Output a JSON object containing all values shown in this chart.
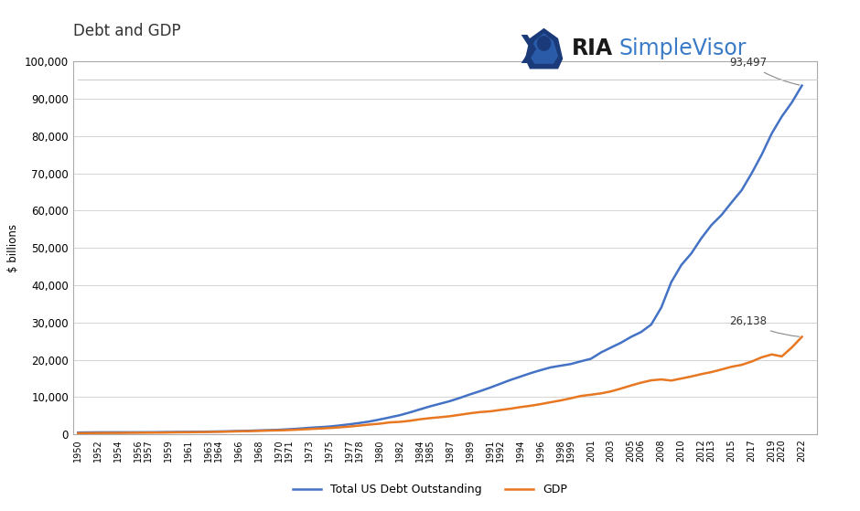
{
  "title": "Debt and GDP",
  "ylabel": "$ billions",
  "background_color": "#ffffff",
  "border_color": "#aaaaaa",
  "debt_color": "#4472c4",
  "gdp_color": "#e87722",
  "debt_label": "Total US Debt Outstanding",
  "gdp_label": "GDP",
  "debt_annotation": "93,497",
  "gdp_annotation": "26,138",
  "years": [
    1950,
    1951,
    1952,
    1953,
    1954,
    1955,
    1956,
    1957,
    1958,
    1959,
    1960,
    1961,
    1962,
    1963,
    1964,
    1965,
    1966,
    1967,
    1968,
    1969,
    1970,
    1971,
    1972,
    1973,
    1974,
    1975,
    1976,
    1977,
    1978,
    1979,
    1980,
    1981,
    1982,
    1983,
    1984,
    1985,
    1986,
    1987,
    1988,
    1989,
    1990,
    1991,
    1992,
    1993,
    1994,
    1995,
    1996,
    1997,
    1998,
    1999,
    2000,
    2001,
    2002,
    2003,
    2004,
    2005,
    2006,
    2007,
    2008,
    2009,
    2010,
    2011,
    2012,
    2013,
    2014,
    2015,
    2016,
    2017,
    2018,
    2019,
    2020,
    2021,
    2022
  ],
  "debt": [
    484,
    520,
    545,
    555,
    558,
    558,
    565,
    574,
    594,
    622,
    644,
    666,
    699,
    736,
    784,
    832,
    898,
    971,
    1056,
    1131,
    1226,
    1380,
    1544,
    1756,
    1917,
    2094,
    2378,
    2697,
    3054,
    3450,
    3985,
    4551,
    5133,
    5876,
    6698,
    7499,
    8208,
    8923,
    9794,
    10727,
    11598,
    12539,
    13558,
    14576,
    15481,
    16395,
    17208,
    17950,
    18406,
    18845,
    19573,
    20244,
    21930,
    23268,
    24564,
    26121,
    27432,
    29413,
    33942,
    40783,
    45374,
    48519,
    52591,
    56108,
    58794,
    62173,
    65430,
    69981,
    74986,
    80668,
    85210,
    88982,
    93497
  ],
  "gdp": [
    300,
    336,
    358,
    379,
    380,
    414,
    437,
    461,
    467,
    506,
    543,
    563,
    605,
    638,
    685,
    743,
    815,
    861,
    942,
    1019,
    1073,
    1165,
    1282,
    1428,
    1549,
    1688,
    1877,
    2086,
    2352,
    2628,
    2857,
    3211,
    3345,
    3638,
    4041,
    4347,
    4590,
    4870,
    5253,
    5657,
    5979,
    6174,
    6539,
    6879,
    7309,
    7664,
    8100,
    8609,
    9089,
    9661,
    10285,
    10621,
    10978,
    11511,
    12274,
    13094,
    13856,
    14478,
    14719,
    14419,
    14964,
    15518,
    16155,
    16692,
    17393,
    18121,
    18625,
    19519,
    20656,
    21427,
    20893,
    23315,
    26138
  ],
  "xtick_years": [
    1950,
    1952,
    1954,
    1956,
    1957,
    1959,
    1961,
    1963,
    1964,
    1966,
    1968,
    1970,
    1971,
    1973,
    1975,
    1977,
    1978,
    1980,
    1982,
    1984,
    1985,
    1987,
    1989,
    1991,
    1992,
    1994,
    1996,
    1998,
    1999,
    2001,
    2003,
    2005,
    2006,
    2008,
    2010,
    2012,
    2013,
    2015,
    2017,
    2019,
    2020,
    2022
  ],
  "ylim": [
    0,
    100000
  ],
  "ytick_step": 10000
}
